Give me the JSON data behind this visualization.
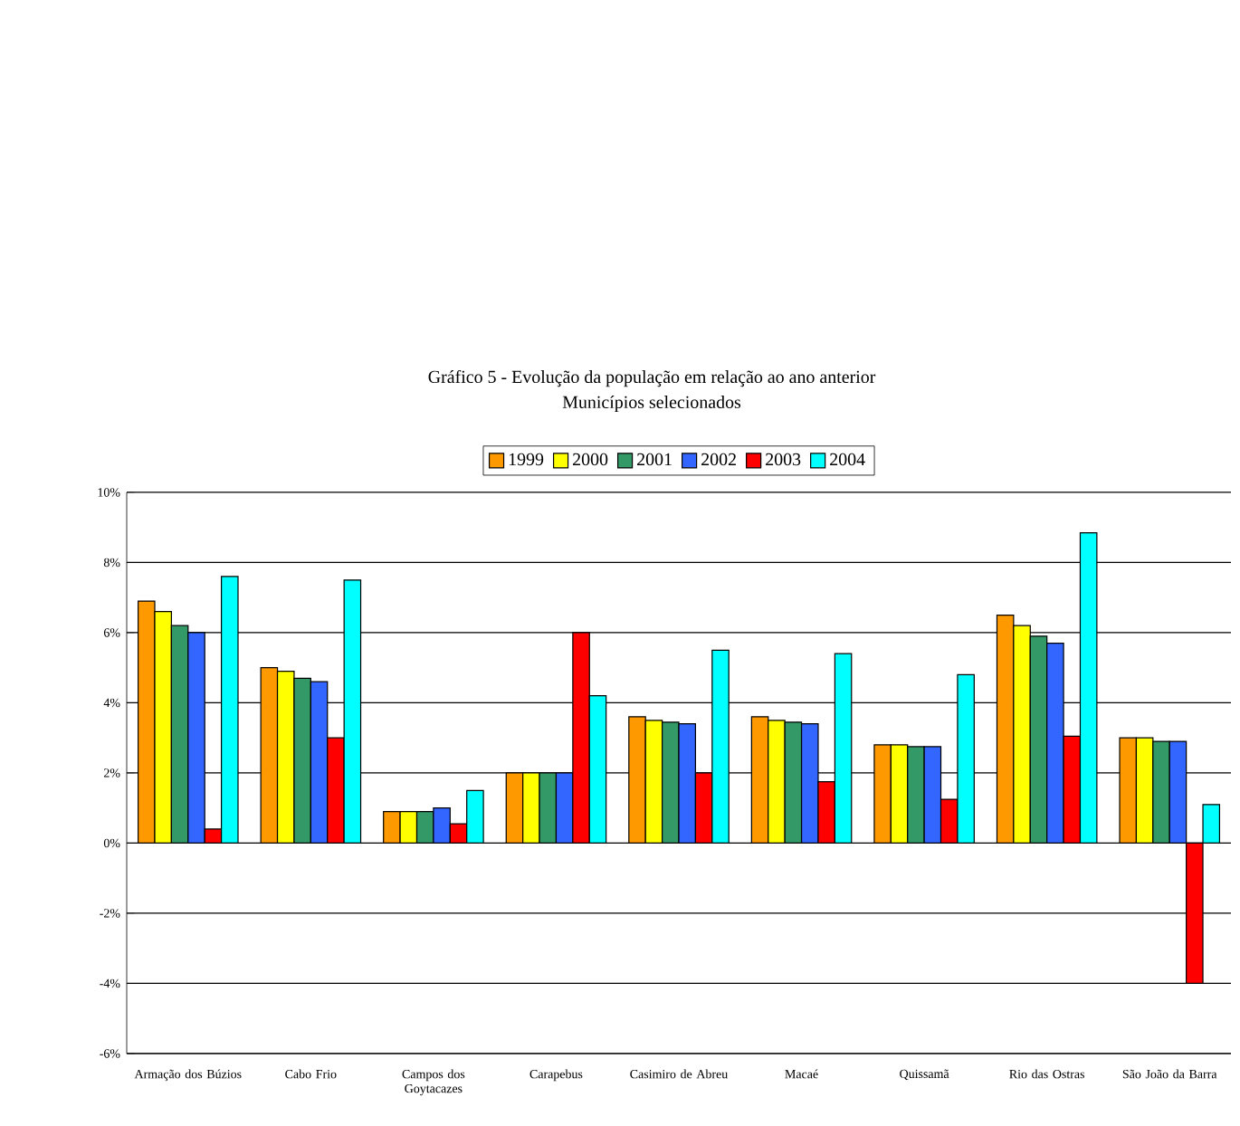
{
  "chart_data": {
    "type": "bar",
    "title": "Gráfico 5 - Evolução da população em relação ao ano anterior",
    "subtitle": "Municípios selecionados",
    "categories": [
      "Armação dos Búzios",
      "Cabo Frio",
      "Campos dos Goytacazes",
      "Carapebus",
      "Casimiro de Abreu",
      "Macaé",
      "Quissamã",
      "Rio das Ostras",
      "São João da Barra"
    ],
    "series": [
      {
        "name": "1999",
        "color": "#ff9900",
        "values": [
          6.9,
          5.0,
          0.9,
          2.0,
          3.6,
          3.6,
          2.8,
          6.5,
          3.0
        ]
      },
      {
        "name": "2000",
        "color": "#ffff00",
        "values": [
          6.6,
          4.9,
          0.9,
          2.0,
          3.5,
          3.5,
          2.8,
          6.2,
          3.0
        ]
      },
      {
        "name": "2001",
        "color": "#339966",
        "values": [
          6.2,
          4.7,
          0.9,
          2.0,
          3.45,
          3.45,
          2.75,
          5.9,
          2.9
        ]
      },
      {
        "name": "2002",
        "color": "#3366ff",
        "values": [
          6.0,
          4.6,
          1.0,
          2.0,
          3.4,
          3.4,
          2.75,
          5.7,
          2.9
        ]
      },
      {
        "name": "2003",
        "color": "#ff0000",
        "values": [
          0.4,
          3.0,
          0.55,
          6.0,
          2.0,
          1.75,
          1.25,
          3.05,
          -4.0
        ]
      },
      {
        "name": "2004",
        "color": "#00ffff",
        "values": [
          7.6,
          7.5,
          1.5,
          4.2,
          5.5,
          5.4,
          4.8,
          8.85,
          1.1
        ]
      }
    ],
    "ylim": [
      -6,
      10
    ],
    "yticks": [
      {
        "value": -6,
        "label": "-6%"
      },
      {
        "value": -4,
        "label": "-4%"
      },
      {
        "value": -2,
        "label": "-2%"
      },
      {
        "value": 0,
        "label": "0%"
      },
      {
        "value": 2,
        "label": "2%"
      },
      {
        "value": 4,
        "label": "4%"
      },
      {
        "value": 6,
        "label": "6%"
      },
      {
        "value": 8,
        "label": "8%"
      },
      {
        "value": 10,
        "label": "10%"
      }
    ],
    "grid": "y",
    "legend": "top"
  }
}
